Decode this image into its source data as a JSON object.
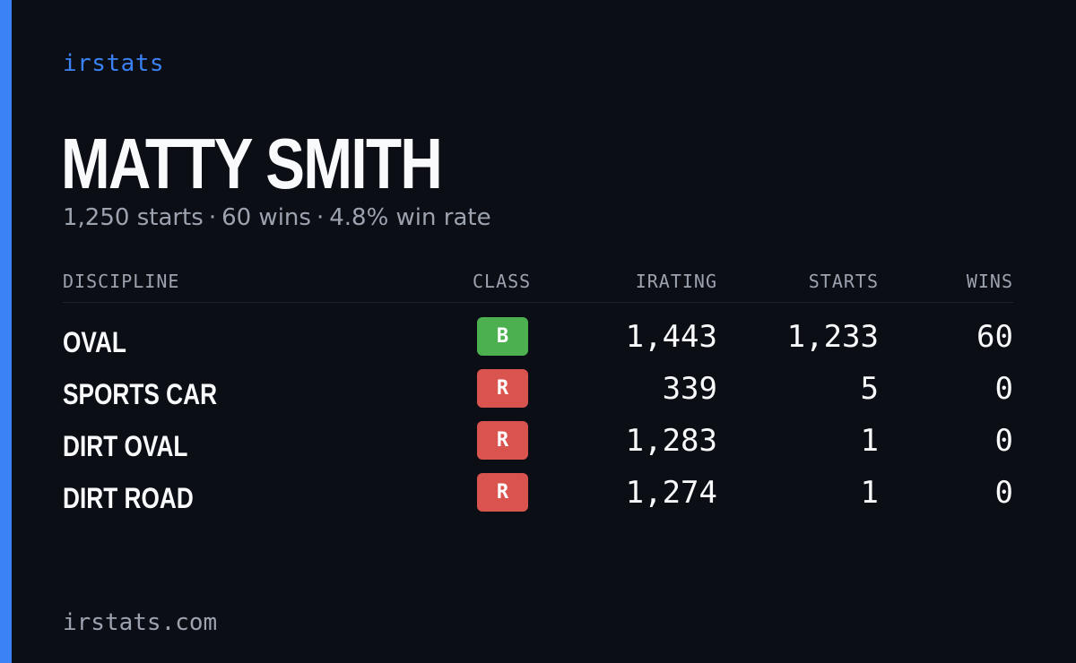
{
  "brand": "irstats",
  "driver": {
    "name": "MATTY SMITH",
    "starts": "1,250 starts",
    "wins": "60 wins",
    "win_rate": "4.8% win rate",
    "separator": "·"
  },
  "table": {
    "headers": {
      "discipline": "DISCIPLINE",
      "class": "CLASS",
      "irating": "IRATING",
      "starts": "STARTS",
      "wins": "WINS"
    },
    "rows": [
      {
        "discipline": "OVAL",
        "class": "B",
        "class_color": "#4caf50",
        "irating": "1,443",
        "starts": "1,233",
        "wins": "60"
      },
      {
        "discipline": "SPORTS CAR",
        "class": "R",
        "class_color": "#d9534f",
        "irating": "339",
        "starts": "5",
        "wins": "0"
      },
      {
        "discipline": "DIRT OVAL",
        "class": "R",
        "class_color": "#d9534f",
        "irating": "1,283",
        "starts": "1",
        "wins": "0"
      },
      {
        "discipline": "DIRT ROAD",
        "class": "R",
        "class_color": "#d9534f",
        "irating": "1,274",
        "starts": "1",
        "wins": "0"
      }
    ]
  },
  "footer": "irstats.com",
  "colors": {
    "accent": "#3b82f6",
    "background": "#0b0e15",
    "muted_text": "#9ca3af"
  }
}
